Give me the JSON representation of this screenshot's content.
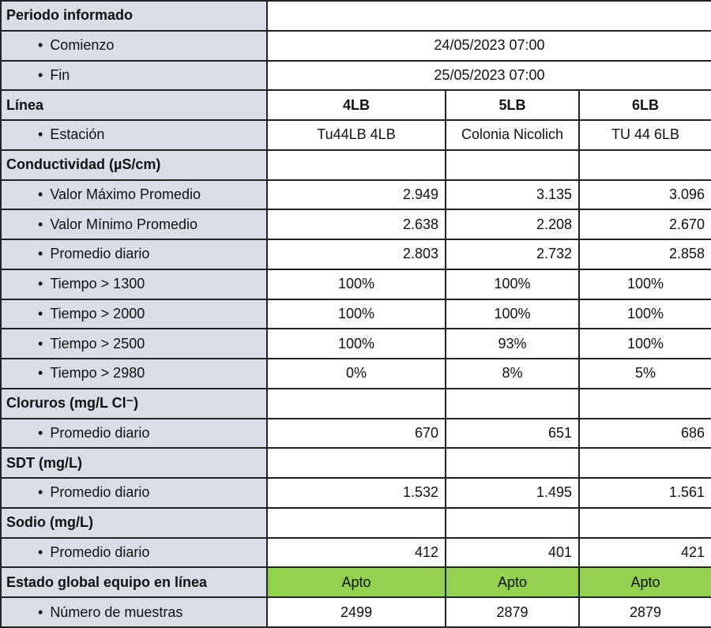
{
  "table": {
    "groups": [
      {
        "heading": "Periodo informado",
        "heading_cells": [],
        "items": [
          {
            "label": "Comienzo",
            "cells": [
              "24/05/2023 07:00"
            ]
          },
          {
            "label": "Fin",
            "cells": [
              "25/05/2023 07:00"
            ]
          }
        ]
      },
      {
        "heading": "Línea",
        "heading_cells": [
          "4LB",
          "5LB",
          "6LB"
        ],
        "items": [
          {
            "label": "Estación",
            "cells": [
              "Tu44LB 4LB",
              "Colonia Nicolich",
              "TU 44 6LB"
            ]
          }
        ]
      },
      {
        "heading": "Conductividad (µS/cm)",
        "heading_cells": [],
        "items": [
          {
            "label": "Valor Máximo Promedio",
            "cells": [
              "2.949",
              "3.135",
              "3.096"
            ]
          },
          {
            "label": "Valor Mínimo Promedio",
            "cells": [
              "2.638",
              "2.208",
              "2.670"
            ]
          },
          {
            "label": "Promedio diario",
            "cells": [
              "2.803",
              "2.732",
              "2.858"
            ]
          },
          {
            "label": "Tiempo > 1300",
            "cells": [
              "100%",
              "100%",
              "100%"
            ]
          },
          {
            "label": "Tiempo > 2000",
            "cells": [
              "100%",
              "100%",
              "100%"
            ]
          },
          {
            "label": "Tiempo > 2500",
            "cells": [
              "100%",
              "93%",
              "100%"
            ]
          },
          {
            "label": "Tiempo > 2980",
            "cells": [
              "0%",
              "8%",
              "5%"
            ]
          }
        ]
      },
      {
        "heading": "Cloruros  (mg/L Cl⁻)",
        "heading_cells": [],
        "items": [
          {
            "label": "Promedio diario",
            "cells": [
              "670",
              "651",
              "686"
            ]
          }
        ]
      },
      {
        "heading": "SDT  (mg/L)",
        "heading_cells": [],
        "items": [
          {
            "label": "Promedio diario",
            "cells": [
              "1.532",
              "1.495",
              "1.561"
            ]
          }
        ]
      },
      {
        "heading": "Sodio  (mg/L)",
        "heading_cells": [],
        "items": [
          {
            "label": "Promedio diario",
            "cells": [
              "412",
              "401",
              "421"
            ]
          }
        ]
      },
      {
        "heading": "Estado global equipo en línea",
        "heading_cells": [
          "Apto",
          "Apto",
          "Apto"
        ],
        "items": [
          {
            "label": "Número de muestras",
            "cells": [
              "2499",
              "2879",
              "2879"
            ]
          }
        ]
      }
    ]
  }
}
